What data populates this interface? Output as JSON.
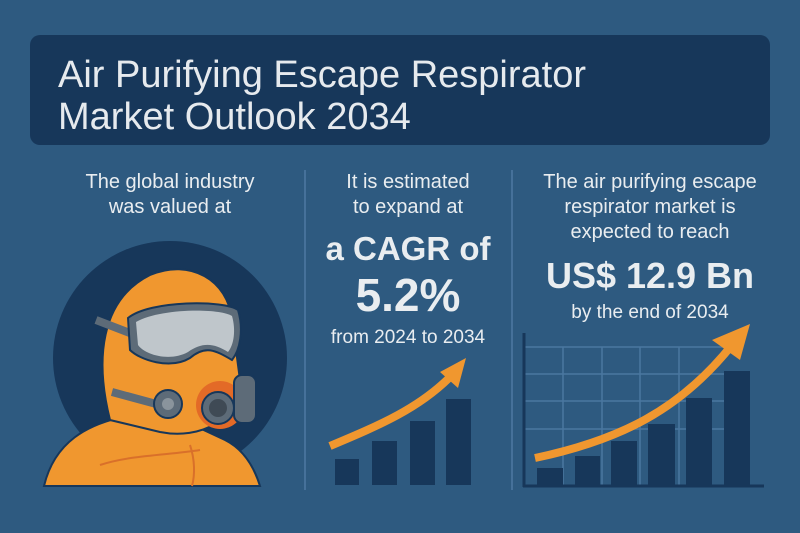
{
  "title": {
    "line1": "Air Purifying Escape Respirator",
    "line2": "Market Outlook 2034"
  },
  "col1": {
    "line1": "The global industry",
    "line2": "was valued at"
  },
  "col2": {
    "line1": "It is estimated",
    "line2": "to expand at",
    "cagr_label": "a CAGR of",
    "cagr_value": "5.2%",
    "period": "from 2024 to 2034"
  },
  "col3": {
    "line1": "The air purifying escape",
    "line2": "respirator market is",
    "line3": "expected to reach",
    "value": "US$ 12.9 Bn",
    "by": "by the end of 2034"
  },
  "colors": {
    "background": "#2e5a80",
    "title_box": "#17375a",
    "accent": "#f0972f",
    "bar": "#17375a"
  }
}
